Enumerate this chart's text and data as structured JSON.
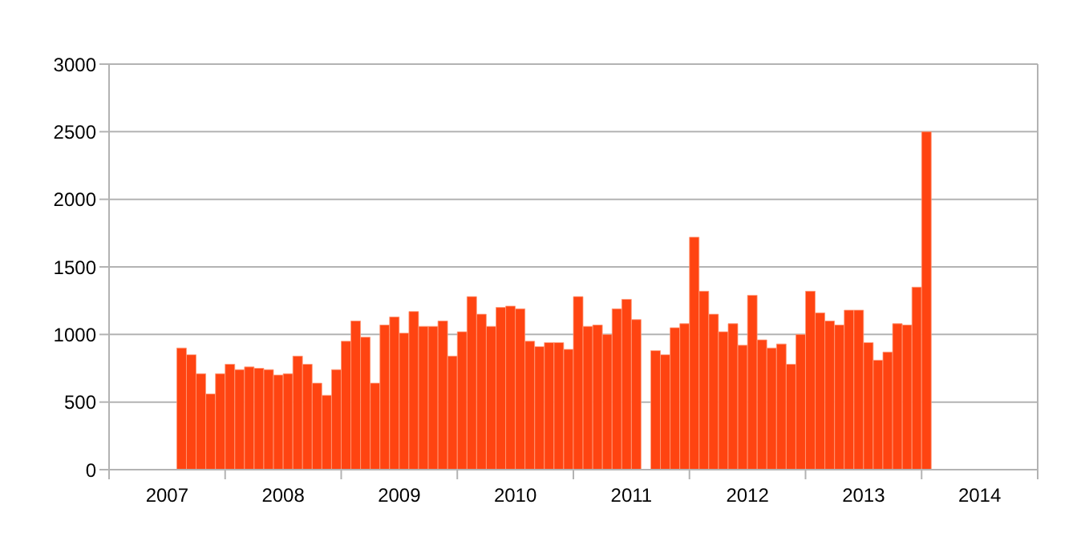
{
  "chart_data": {
    "type": "bar",
    "categories": [
      null,
      null,
      null,
      null,
      null,
      null,
      "2007",
      null,
      null,
      null,
      null,
      null,
      null,
      null,
      null,
      null,
      null,
      null,
      "2008",
      null,
      null,
      null,
      null,
      null,
      null,
      null,
      null,
      null,
      null,
      null,
      "2009",
      null,
      null,
      null,
      null,
      null,
      null,
      null,
      null,
      null,
      null,
      null,
      "2010",
      null,
      null,
      null,
      null,
      null,
      null,
      null,
      null,
      null,
      null,
      null,
      "2011",
      null,
      null,
      null,
      null,
      null,
      null,
      null,
      null,
      null,
      null,
      null,
      "2012",
      null,
      null,
      null,
      null,
      null,
      null,
      null,
      null,
      null,
      null,
      null,
      "2013",
      null,
      null,
      null,
      null,
      null,
      null,
      null,
      null,
      null,
      null,
      null,
      "2014",
      null,
      null,
      null,
      null,
      null
    ],
    "values": [
      null,
      null,
      null,
      null,
      null,
      null,
      null,
      900,
      850,
      710,
      560,
      710,
      780,
      740,
      760,
      750,
      740,
      700,
      710,
      840,
      780,
      640,
      550,
      740,
      950,
      1100,
      980,
      640,
      1070,
      1130,
      1010,
      1170,
      1060,
      1060,
      1100,
      840,
      1020,
      1280,
      1150,
      1060,
      1200,
      1210,
      1190,
      950,
      910,
      940,
      940,
      890,
      1280,
      1060,
      1070,
      1000,
      1190,
      1260,
      1110,
      null,
      880,
      850,
      1050,
      1080,
      1720,
      1320,
      1150,
      1020,
      1080,
      920,
      1290,
      960,
      900,
      930,
      780,
      1000,
      1320,
      1160,
      1100,
      1070,
      1180,
      1180,
      940,
      810,
      870,
      1080,
      1070,
      1350,
      2500,
      null,
      null,
      null,
      null,
      null,
      null,
      null,
      null,
      null,
      null,
      null
    ],
    "color": "#ff4411",
    "ylim": [
      0,
      3000
    ],
    "yticks": [
      0,
      500,
      1000,
      1500,
      2000,
      2500,
      3000
    ],
    "grid": "y"
  }
}
